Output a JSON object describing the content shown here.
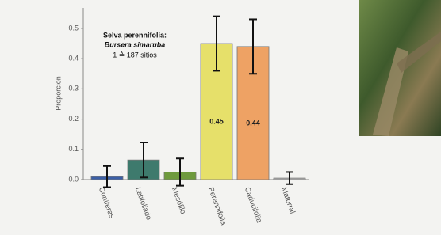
{
  "chart_data": {
    "type": "bar",
    "y_label": "Proporción",
    "annotations": [
      "Selva perennifolia:",
      "Bursera simaruba",
      "1 ≙ 187 sitios"
    ],
    "categories": [
      "Coníferas",
      "Latifoliado",
      "Mesófilo",
      "Perennifolia",
      "Caducifolia",
      "Matorral"
    ],
    "values": [
      0.01,
      0.065,
      0.025,
      0.45,
      0.44,
      0.005
    ],
    "value_labels": [
      null,
      null,
      null,
      "0.45",
      "0.44",
      null
    ],
    "errors": [
      0.035,
      0.058,
      0.045,
      0.09,
      0.09,
      0.02
    ],
    "colors": [
      "#3b5fa6",
      "#3e7a6d",
      "#6e9a3d",
      "#e6e06a",
      "#eea264",
      "#b9b9b9"
    ],
    "ylim": [
      0,
      0.56
    ],
    "yticks": [
      {
        "value": 0,
        "label": "0.0"
      },
      0.1,
      0.2,
      0.3,
      0.4,
      0.5
    ],
    "grid": false
  }
}
